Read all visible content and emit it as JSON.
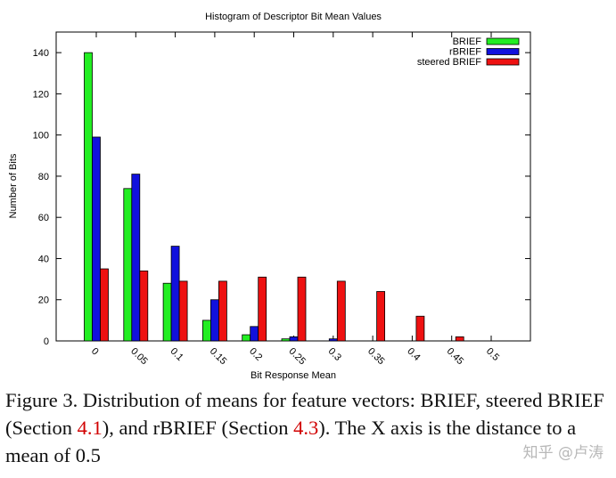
{
  "chart_data": {
    "type": "bar",
    "title": "Histogram of Descriptor Bit Mean Values",
    "xlabel": "Bit Response Mean",
    "ylabel": "Number of Bits",
    "ylim": [
      0,
      150
    ],
    "yticks": [
      0,
      20,
      40,
      60,
      80,
      100,
      120,
      140
    ],
    "categories": [
      "0",
      "0.05",
      "0.1",
      "0.15",
      "0.2",
      "0.25",
      "0.3",
      "0.35",
      "0.4",
      "0.45",
      "0.5"
    ],
    "legend_position": "top-right",
    "grid": false,
    "series": [
      {
        "name": "BRIEF",
        "color": "#22ee22",
        "values": [
          140,
          74,
          28,
          10,
          3,
          1,
          0,
          0,
          0,
          0,
          0
        ]
      },
      {
        "name": "rBRIEF",
        "color": "#1111dd",
        "values": [
          99,
          81,
          46,
          20,
          7,
          2,
          1,
          0,
          0,
          0,
          0
        ]
      },
      {
        "name": "steered BRIEF",
        "color": "#ee1111",
        "values": [
          35,
          34,
          29,
          29,
          31,
          31,
          29,
          24,
          12,
          2,
          0
        ]
      }
    ]
  },
  "caption": {
    "part1": "Figure 3. Distribution of means for feature vectors: BRIEF, steered BRIEF (Section ",
    "ref1": "4.1",
    "part2": "), and rBRIEF (Section ",
    "ref2": "4.3",
    "part3": "). The X axis is the distance to a mean of 0.5"
  },
  "watermark": "知乎 @卢涛"
}
